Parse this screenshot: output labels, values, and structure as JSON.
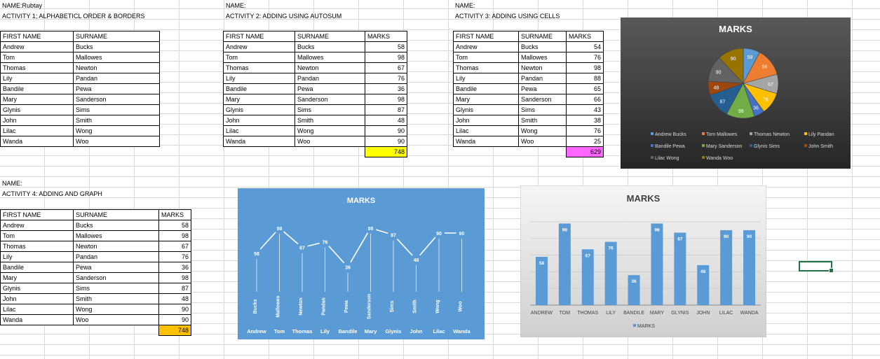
{
  "activity1": {
    "name_label": "NAME:Rubtay",
    "title": "ACTIVITY 1; ALPHABETICL ORDER & BORDERS",
    "headers": [
      "FIRST NAME",
      "SURNAME"
    ],
    "rows": [
      [
        "Andrew",
        "Bucks"
      ],
      [
        "Tom",
        "Mallowes"
      ],
      [
        "Thomas",
        "Newton"
      ],
      [
        "Lily",
        "Pandan"
      ],
      [
        "Bandile",
        "Pewa"
      ],
      [
        "Mary",
        "Sanderson"
      ],
      [
        "Glynis",
        "Sims"
      ],
      [
        "John",
        "Smith"
      ],
      [
        "Lilac",
        "Wong"
      ],
      [
        "Wanda",
        "Woo"
      ]
    ]
  },
  "activity2": {
    "name_label": "NAME:",
    "title": "ACTIVITY 2: ADDING USING AUTOSUM",
    "headers": [
      "FIRST NAME",
      "SURNAME",
      "MARKS"
    ],
    "rows": [
      [
        "Andrew",
        "Bucks",
        "58"
      ],
      [
        "Tom",
        "Mallowes",
        "98"
      ],
      [
        "Thomas",
        "Newton",
        "67"
      ],
      [
        "Lily",
        "Pandan",
        "76"
      ],
      [
        "Bandile",
        "Pewa",
        "36"
      ],
      [
        "Mary",
        "Sanderson",
        "98"
      ],
      [
        "Glynis",
        "Sims",
        "87"
      ],
      [
        "John",
        "Smith",
        "48"
      ],
      [
        "Lilac",
        "Wong",
        "90"
      ],
      [
        "Wanda",
        "Woo",
        "90"
      ]
    ],
    "total": "748",
    "total_color": "#ffff00"
  },
  "activity3": {
    "name_label": "NAME:",
    "title": "ACTIVITY 3: ADDING USING CELLS",
    "headers": [
      "FIRST NAME",
      "SURNAME",
      "MARKS"
    ],
    "rows": [
      [
        "Andrew",
        "Bucks",
        "54"
      ],
      [
        "Tom",
        "Mallowes",
        "76"
      ],
      [
        "Thomas",
        "Newton",
        "98"
      ],
      [
        "Lily",
        "Pandan",
        "88"
      ],
      [
        "Bandile",
        "Pewa",
        "65"
      ],
      [
        "Mary",
        "Sanderson",
        "66"
      ],
      [
        "Glynis",
        "Sims",
        "43"
      ],
      [
        "John",
        "Smith",
        "38"
      ],
      [
        "Lilac",
        "Wong",
        "76"
      ],
      [
        "Wanda",
        "Woo",
        "25"
      ]
    ],
    "total": "629",
    "total_color": "#ff66ff"
  },
  "activity4": {
    "name_label": "NAME:",
    "title": "ACTIVITY 4: ADDING AND GRAPH",
    "headers": [
      "FIRST NAME",
      "SURNAME",
      "MARKS"
    ],
    "rows": [
      [
        "Andrew",
        "Bucks",
        "58"
      ],
      [
        "Tom",
        "Mallowes",
        "98"
      ],
      [
        "Thomas",
        "Newton",
        "67"
      ],
      [
        "Lily",
        "Pandan",
        "76"
      ],
      [
        "Bandile",
        "Pewa",
        "36"
      ],
      [
        "Mary",
        "Sanderson",
        "98"
      ],
      [
        "Glynis",
        "Sims",
        "87"
      ],
      [
        "John",
        "Smith",
        "48"
      ],
      [
        "Lilac",
        "Wong",
        "90"
      ],
      [
        "Wanda",
        "Woo",
        "90"
      ]
    ],
    "total": "748",
    "total_color": "#ffc000"
  },
  "colors": {
    "pie_slices": [
      "#5b9bd5",
      "#ed7d31",
      "#a5a5a5",
      "#ffc000",
      "#4472c4",
      "#70ad47",
      "#255e91",
      "#9e480e",
      "#636363",
      "#997300"
    ],
    "line_bg": "#5b9bd5",
    "bar_fill": "#5b9bd5",
    "pie_bg": "#404040",
    "selection": "#217346"
  },
  "chart_data": [
    {
      "type": "pie",
      "title": "MARKS",
      "labels": [
        "Andrew Bucks",
        "Tom Mallowes",
        "Thomas Newton",
        "Lily Pandan",
        "Bandile Pewa",
        "Mary Sanderson",
        "Glynis Sims",
        "John Smith",
        "Lilac Wong",
        "Wanda Woo"
      ],
      "values": [
        58,
        98,
        67,
        76,
        36,
        98,
        87,
        48,
        90,
        90
      ],
      "legend": "bottom"
    },
    {
      "type": "line",
      "title": "MARKS",
      "categories": [
        "Andrew",
        "Tom",
        "Thomas",
        "Lily",
        "Bandile",
        "Mary",
        "Glynis",
        "John",
        "Lilac",
        "Wanda"
      ],
      "surnames": [
        "Bucks",
        "Mallowes",
        "Newton",
        "Pandan",
        "Pewa",
        "Sanderson",
        "Sims",
        "Smith",
        "Wong",
        "Woo"
      ],
      "values": [
        58,
        98,
        67,
        76,
        36,
        98,
        87,
        48,
        90,
        90
      ],
      "ylim": [
        0,
        100
      ]
    },
    {
      "type": "bar",
      "title": "MARKS",
      "categories": [
        "ANDREW",
        "TOM",
        "THOMAS",
        "LILY",
        "BANDILE",
        "MARY",
        "GLYNIS",
        "JOHN",
        "LILAC",
        "WANDA"
      ],
      "series": [
        {
          "name": "MARKS",
          "values": [
            58,
            98,
            67,
            76,
            36,
            98,
            87,
            48,
            90,
            90
          ]
        }
      ],
      "ylim": [
        0,
        100
      ],
      "grid": true,
      "legend": "bottom"
    }
  ]
}
